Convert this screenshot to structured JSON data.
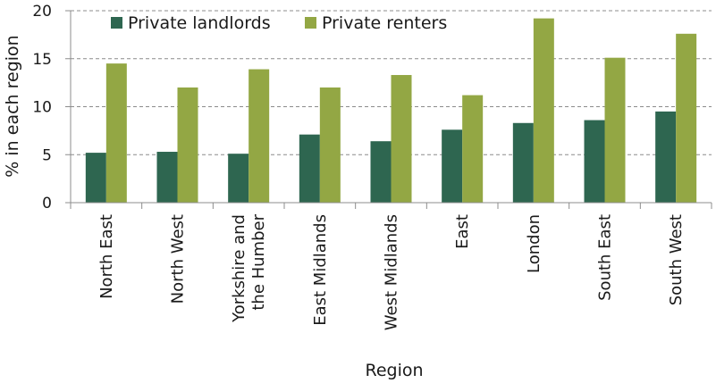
{
  "chart_data": {
    "type": "bar",
    "title": "",
    "xlabel": "Region",
    "ylabel": "% in each region",
    "ylim": [
      0,
      20
    ],
    "yticks": [
      0,
      5,
      10,
      15,
      20
    ],
    "grid": true,
    "legend_position": "top-left",
    "categories": [
      [
        "North East"
      ],
      [
        "North West"
      ],
      [
        "Yorkshire and",
        "the Humber"
      ],
      [
        "East Midlands"
      ],
      [
        "West Midlands"
      ],
      [
        "East"
      ],
      [
        "London"
      ],
      [
        "South East"
      ],
      [
        "South West"
      ]
    ],
    "series": [
      {
        "name": "Private landlords",
        "color": "#2e6650",
        "values": [
          5.2,
          5.3,
          5.1,
          7.1,
          6.4,
          7.6,
          8.3,
          8.6,
          9.5
        ]
      },
      {
        "name": "Private renters",
        "color": "#93a744",
        "values": [
          14.5,
          12.0,
          13.9,
          12.0,
          13.3,
          11.2,
          19.2,
          15.1,
          17.6
        ]
      }
    ]
  }
}
